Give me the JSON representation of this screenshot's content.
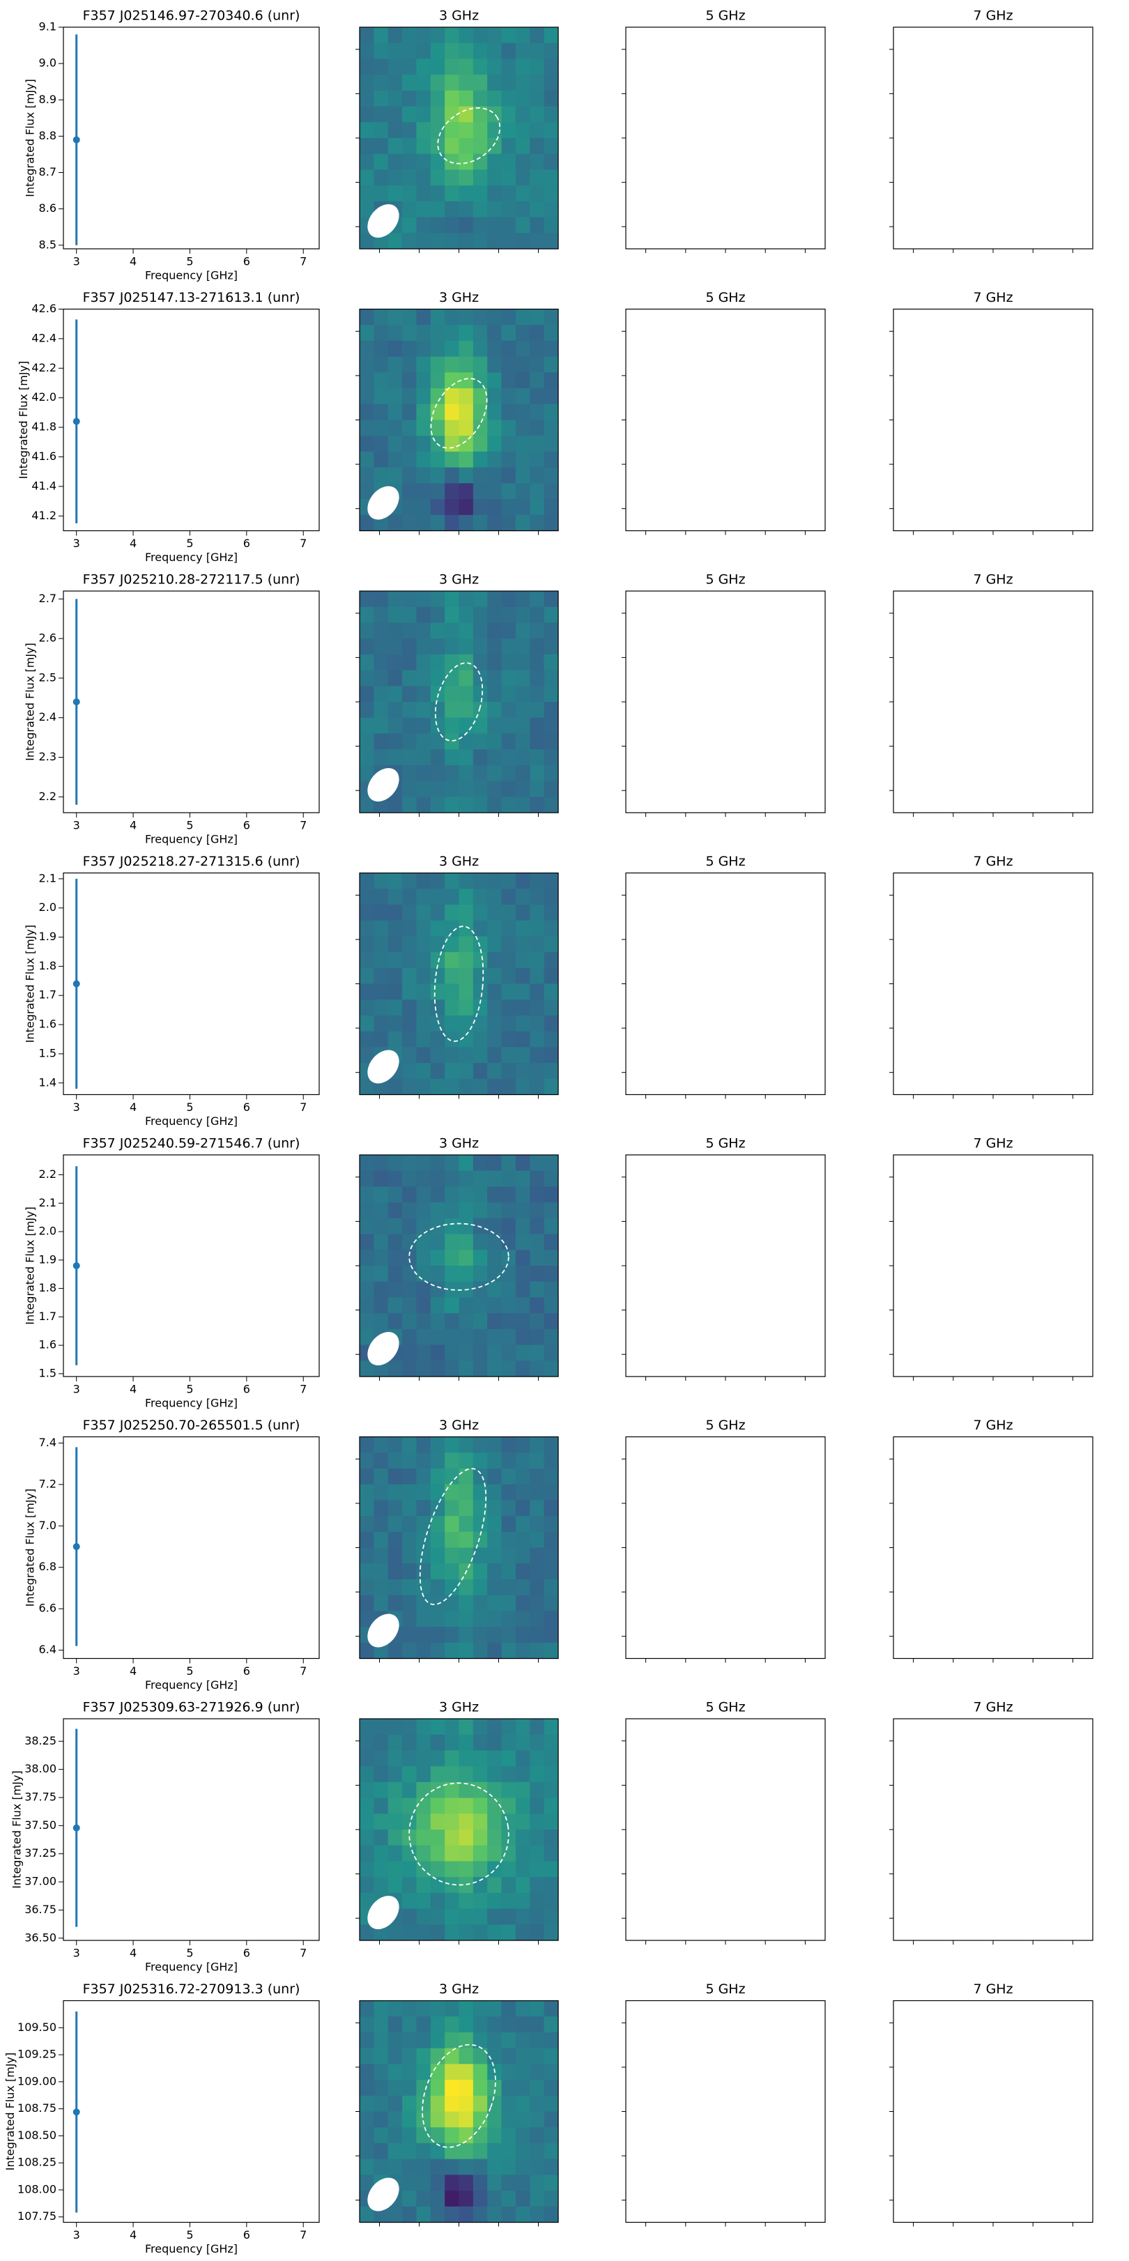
{
  "chart_data": [
    {
      "type": "errorbar",
      "title": "F357 J025146.97-270340.6 (unr)",
      "xlabel": "Frequency [GHz]",
      "ylabel": "Integrated Flux [mJy]",
      "x": [
        3
      ],
      "values": [
        8.79
      ],
      "errors": [
        0.29
      ],
      "color": "#1f77b4",
      "xlim": [
        2.77,
        7.28
      ],
      "xticks": [
        3,
        4,
        5,
        6,
        7
      ],
      "ylim": [
        8.49,
        9.1
      ],
      "yticks": [
        8.5,
        8.6,
        8.7,
        8.8,
        8.9,
        {
          "value": 9,
          "label": "9.0"
        },
        9.1
      ],
      "panel_titles": [
        "3 GHz",
        "5 GHz",
        "7 GHz"
      ]
    },
    {
      "type": "errorbar",
      "title": "F357 J025147.13-271613.1 (unr)",
      "xlabel": "Frequency [GHz]",
      "ylabel": "Integrated Flux [mJy]",
      "x": [
        3
      ],
      "values": [
        41.84
      ],
      "errors": [
        0.69
      ],
      "color": "#1f77b4",
      "xlim": [
        2.77,
        7.28
      ],
      "xticks": [
        3,
        4,
        5,
        6,
        7
      ],
      "ylim": [
        41.1,
        42.6
      ],
      "yticks": [
        41.2,
        41.4,
        41.6,
        41.8,
        {
          "value": 42,
          "label": "42.0"
        },
        42.2,
        42.4,
        42.6
      ],
      "panel_titles": [
        "3 GHz",
        "5 GHz",
        "7 GHz"
      ]
    },
    {
      "type": "errorbar",
      "title": "F357 J025210.28-272117.5 (unr)",
      "xlabel": "Frequency [GHz]",
      "ylabel": "Integrated Flux [mJy]",
      "x": [
        3
      ],
      "values": [
        2.44
      ],
      "errors": [
        0.26
      ],
      "color": "#1f77b4",
      "xlim": [
        2.77,
        7.28
      ],
      "xticks": [
        3,
        4,
        5,
        6,
        7
      ],
      "ylim": [
        2.16,
        2.72
      ],
      "yticks": [
        2.2,
        2.3,
        2.4,
        2.5,
        2.6,
        2.7
      ],
      "panel_titles": [
        "3 GHz",
        "5 GHz",
        "7 GHz"
      ]
    },
    {
      "type": "errorbar",
      "title": "F357 J025218.27-271315.6 (unr)",
      "xlabel": "Frequency [GHz]",
      "ylabel": "Integrated Flux [mJy]",
      "x": [
        3
      ],
      "values": [
        1.74
      ],
      "errors": [
        0.36
      ],
      "color": "#1f77b4",
      "xlim": [
        2.77,
        7.28
      ],
      "xticks": [
        3,
        4,
        5,
        6,
        7
      ],
      "ylim": [
        1.36,
        2.12
      ],
      "yticks": [
        1.4,
        1.5,
        1.6,
        1.7,
        1.8,
        1.9,
        {
          "value": 2,
          "label": "2.0"
        },
        2.1
      ],
      "panel_titles": [
        "3 GHz",
        "5 GHz",
        "7 GHz"
      ]
    },
    {
      "type": "errorbar",
      "title": "F357 J025240.59-271546.7 (unr)",
      "xlabel": "Frequency [GHz]",
      "ylabel": "Integrated Flux [mJy]",
      "x": [
        3
      ],
      "values": [
        1.88
      ],
      "errors": [
        0.35
      ],
      "color": "#1f77b4",
      "xlim": [
        2.77,
        7.28
      ],
      "xticks": [
        3,
        4,
        5,
        6,
        7
      ],
      "ylim": [
        1.49,
        2.27
      ],
      "yticks": [
        1.5,
        1.6,
        1.7,
        1.8,
        1.9,
        {
          "value": 2,
          "label": "2.0"
        },
        2.1,
        2.2
      ],
      "panel_titles": [
        "3 GHz",
        "5 GHz",
        "7 GHz"
      ]
    },
    {
      "type": "errorbar",
      "title": "F357 J025250.70-265501.5 (unr)",
      "xlabel": "Frequency [GHz]",
      "ylabel": "Integrated Flux [mJy]",
      "x": [
        3
      ],
      "values": [
        6.9
      ],
      "errors": [
        0.48
      ],
      "color": "#1f77b4",
      "xlim": [
        2.77,
        7.28
      ],
      "xticks": [
        3,
        4,
        5,
        6,
        7
      ],
      "ylim": [
        6.36,
        7.43
      ],
      "yticks": [
        6.4,
        6.6,
        6.8,
        {
          "value": 7,
          "label": "7.0"
        },
        7.2,
        7.4
      ],
      "panel_titles": [
        "3 GHz",
        "5 GHz",
        "7 GHz"
      ]
    },
    {
      "type": "errorbar",
      "title": "F357 J025309.63-271926.9 (unr)",
      "xlabel": "Frequency [GHz]",
      "ylabel": "Integrated Flux [mJy]",
      "x": [
        3
      ],
      "values": [
        37.48
      ],
      "errors": [
        0.88
      ],
      "color": "#1f77b4",
      "xlim": [
        2.77,
        7.28
      ],
      "xticks": [
        3,
        4,
        5,
        6,
        7
      ],
      "ylim": [
        36.48,
        38.45
      ],
      "yticks": [
        {
          "value": 36.5,
          "label": "36.50"
        },
        36.75,
        {
          "value": 37,
          "label": "37.00"
        },
        37.25,
        {
          "value": 37.5,
          "label": "37.50"
        },
        37.75,
        {
          "value": 38,
          "label": "38.00"
        },
        38.25
      ],
      "panel_titles": [
        "3 GHz",
        "5 GHz",
        "7 GHz"
      ]
    },
    {
      "type": "errorbar",
      "title": "F357 J025316.72-270913.3 (unr)",
      "xlabel": "Frequency [GHz]",
      "ylabel": "Integrated Flux [mJy]",
      "x": [
        3
      ],
      "values": [
        108.72
      ],
      "errors": [
        0.93
      ],
      "color": "#1f77b4",
      "xlim": [
        2.77,
        7.28
      ],
      "xticks": [
        3,
        4,
        5,
        6,
        7
      ],
      "ylim": [
        107.7,
        109.75
      ],
      "yticks": [
        107.75,
        {
          "value": 108,
          "label": "108.00"
        },
        108.25,
        {
          "value": 108.5,
          "label": "108.50"
        },
        108.75,
        {
          "value": 109,
          "label": "109.00"
        },
        109.25,
        {
          "value": 109.5,
          "label": "109.50"
        }
      ],
      "panel_titles": [
        "3 GHz",
        "5 GHz",
        "7 GHz"
      ]
    }
  ]
}
